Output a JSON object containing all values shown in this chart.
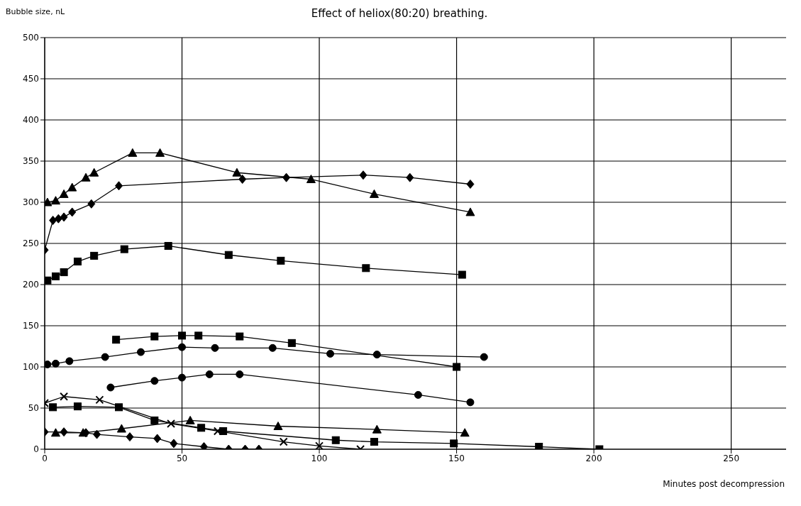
{
  "chart_data": {
    "type": "line",
    "title": "Effect of heliox(80:20) breathing.",
    "xlabel": "Minutes post decompression",
    "ylabel": "Bubble size, nL",
    "xlim": [
      0,
      270
    ],
    "xticks": [
      0,
      50,
      100,
      150,
      200,
      250
    ],
    "ylim": [
      0,
      500
    ],
    "yticks": [
      0,
      50,
      100,
      150,
      200,
      250,
      300,
      350,
      400,
      450,
      500
    ],
    "grid": true,
    "line_style": "solid",
    "series": [
      {
        "marker": "triangle",
        "color": "#000000",
        "x": [
          1,
          4,
          7,
          10,
          15,
          18,
          32,
          42,
          70,
          97,
          120,
          155
        ],
        "values": [
          300,
          302,
          310,
          318,
          330,
          336,
          360,
          360,
          336,
          328,
          310,
          288
        ]
      },
      {
        "marker": "diamond",
        "color": "#000000",
        "x": [
          0,
          3,
          5,
          7,
          10,
          17,
          27,
          72,
          88,
          116,
          133,
          155
        ],
        "values": [
          242,
          278,
          280,
          282,
          288,
          298,
          320,
          328,
          330,
          333,
          330,
          322
        ]
      },
      {
        "marker": "square",
        "color": "#000000",
        "x": [
          1,
          4,
          7,
          12,
          18,
          29,
          45,
          67,
          86,
          117,
          152
        ],
        "values": [
          205,
          210,
          215,
          228,
          235,
          243,
          247,
          236,
          229,
          220,
          212
        ]
      },
      {
        "marker": "square",
        "color": "#000000",
        "x": [
          26,
          40,
          50,
          56,
          71,
          90,
          150
        ],
        "values": [
          133,
          137,
          138,
          138,
          137,
          129,
          100
        ]
      },
      {
        "marker": "circle",
        "color": "#000000",
        "x": [
          1,
          4,
          9,
          22,
          35,
          50,
          62,
          83,
          104,
          121,
          160
        ],
        "values": [
          103,
          104,
          107,
          112,
          118,
          124,
          123,
          123,
          116,
          115,
          112
        ]
      },
      {
        "marker": "circle",
        "color": "#000000",
        "x": [
          24,
          40,
          50,
          60,
          71,
          136,
          155
        ],
        "values": [
          75,
          83,
          87,
          91,
          91,
          66,
          57
        ]
      },
      {
        "marker": "cross",
        "color": "#000000",
        "x": [
          0,
          7,
          20,
          46,
          63,
          87,
          100,
          115
        ],
        "values": [
          56,
          64,
          60,
          31,
          22,
          9,
          4,
          0
        ]
      },
      {
        "marker": "square",
        "color": "#000000",
        "x": [
          3,
          12,
          27,
          40,
          57,
          65,
          106,
          120,
          149,
          180,
          202
        ],
        "values": [
          51,
          52,
          51,
          35,
          26,
          22,
          11,
          9,
          7,
          3,
          0
        ]
      },
      {
        "marker": "triangle",
        "color": "#000000",
        "x": [
          4,
          14,
          28,
          53,
          85,
          121,
          153
        ],
        "values": [
          20,
          20,
          25,
          35,
          28,
          24,
          20
        ]
      },
      {
        "marker": "diamond",
        "color": "#000000",
        "x": [
          0,
          7,
          15,
          19,
          31,
          41,
          47,
          58,
          67,
          73,
          78
        ],
        "values": [
          21,
          21,
          20,
          18,
          15,
          13,
          7,
          3,
          0,
          0,
          0
        ]
      }
    ]
  }
}
